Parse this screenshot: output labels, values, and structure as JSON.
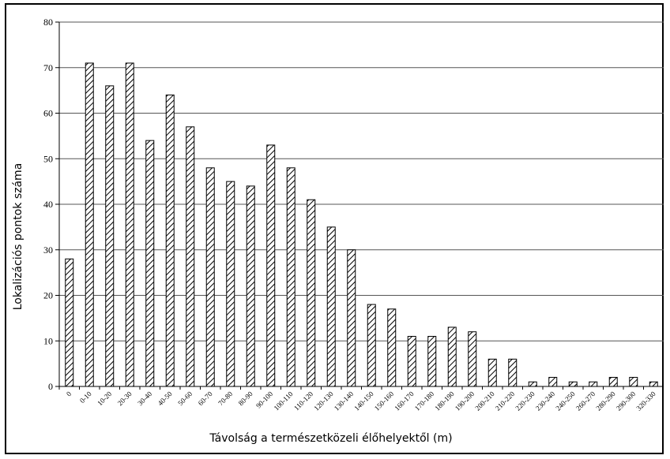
{
  "chart_data": {
    "type": "bar",
    "title": "",
    "xlabel": "Távolság a természetközeli élőhelyektől (m)",
    "ylabel": "Lokalizációs pontok száma",
    "ylim": [
      0,
      80
    ],
    "yticks": [
      0,
      10,
      20,
      30,
      40,
      50,
      60,
      70,
      80
    ],
    "grid": true,
    "bar_fill": "diagonal-hatch",
    "colors": {
      "bar_stroke": "#000000",
      "grid": "#000000",
      "background": "#ffffff"
    },
    "categories": [
      "0",
      "0-10",
      "10-20",
      "20-30",
      "30-40",
      "40-50",
      "50-60",
      "60-70",
      "70-80",
      "80-90",
      "90-100",
      "100-110",
      "110-120",
      "120-130",
      "130-140",
      "140-150",
      "150-160",
      "160-170",
      "170-180",
      "180-190",
      "190-200",
      "200-210",
      "210-220",
      "220-230",
      "230-240",
      "240-250",
      "260-270",
      "280-290",
      "290-300",
      "320-330"
    ],
    "values": [
      28,
      71,
      66,
      71,
      54,
      64,
      57,
      48,
      45,
      44,
      53,
      48,
      41,
      35,
      30,
      18,
      17,
      11,
      11,
      13,
      12,
      6,
      6,
      1,
      2,
      1,
      1,
      2,
      2,
      1
    ]
  }
}
